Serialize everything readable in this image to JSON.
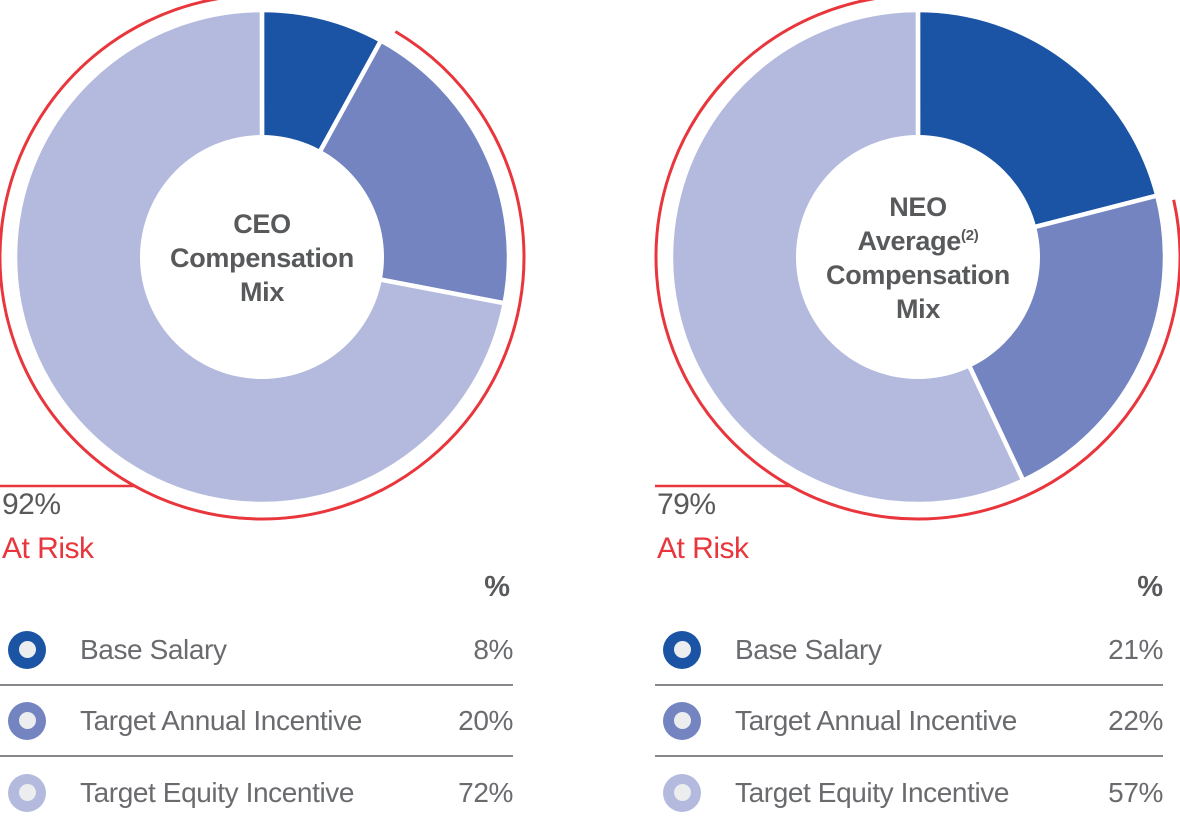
{
  "colors": {
    "base_salary": "#1B54A5",
    "target_annual_incentive": "#7384C1",
    "target_equity_incentive": "#B4BADE",
    "at_risk_red": "#E8363C",
    "title_gray": "#58595B",
    "label_gray": "#6A6B6E",
    "divider_gray": "#85878A",
    "bullet_hole": "#ECEDEE"
  },
  "chart_data": [
    {
      "type": "pie",
      "subtype": "donut",
      "title": "CEO Compensation Mix",
      "title_lines": [
        {
          "text": "CEO"
        },
        {
          "text": "Compensation"
        },
        {
          "text": "Mix"
        }
      ],
      "categories": [
        "Base Salary",
        "Target Annual Incentive",
        "Target Equity Incentive"
      ],
      "values": [
        8,
        20,
        72
      ],
      "start_angle_deg": 0,
      "direction": "clockwise",
      "at_risk_pct": 92,
      "at_risk_pct_label": "92%",
      "at_risk_label": "At Risk",
      "legend": {
        "header": "%",
        "rows": [
          {
            "label": "Base Salary",
            "value": "8%"
          },
          {
            "label": "Target Annual Incentive",
            "value": "20%"
          },
          {
            "label": "Target Equity Incentive",
            "value": "72%"
          }
        ]
      }
    },
    {
      "type": "pie",
      "subtype": "donut",
      "title": "NEO Average(2) Compensation Mix",
      "title_lines": [
        {
          "text": "NEO"
        },
        {
          "text": "Average",
          "sup": "(2)"
        },
        {
          "text": "Compensation"
        },
        {
          "text": "Mix"
        }
      ],
      "categories": [
        "Base Salary",
        "Target Annual Incentive",
        "Target Equity Incentive"
      ],
      "values": [
        21,
        22,
        57
      ],
      "start_angle_deg": 0,
      "direction": "clockwise",
      "at_risk_pct": 79,
      "at_risk_pct_label": "79%",
      "at_risk_label": "At Risk",
      "legend": {
        "header": "%",
        "rows": [
          {
            "label": "Base Salary",
            "value": "21%"
          },
          {
            "label": "Target Annual Incentive",
            "value": "22%"
          },
          {
            "label": "Target Equity Incentive",
            "value": "57%"
          }
        ]
      }
    }
  ]
}
